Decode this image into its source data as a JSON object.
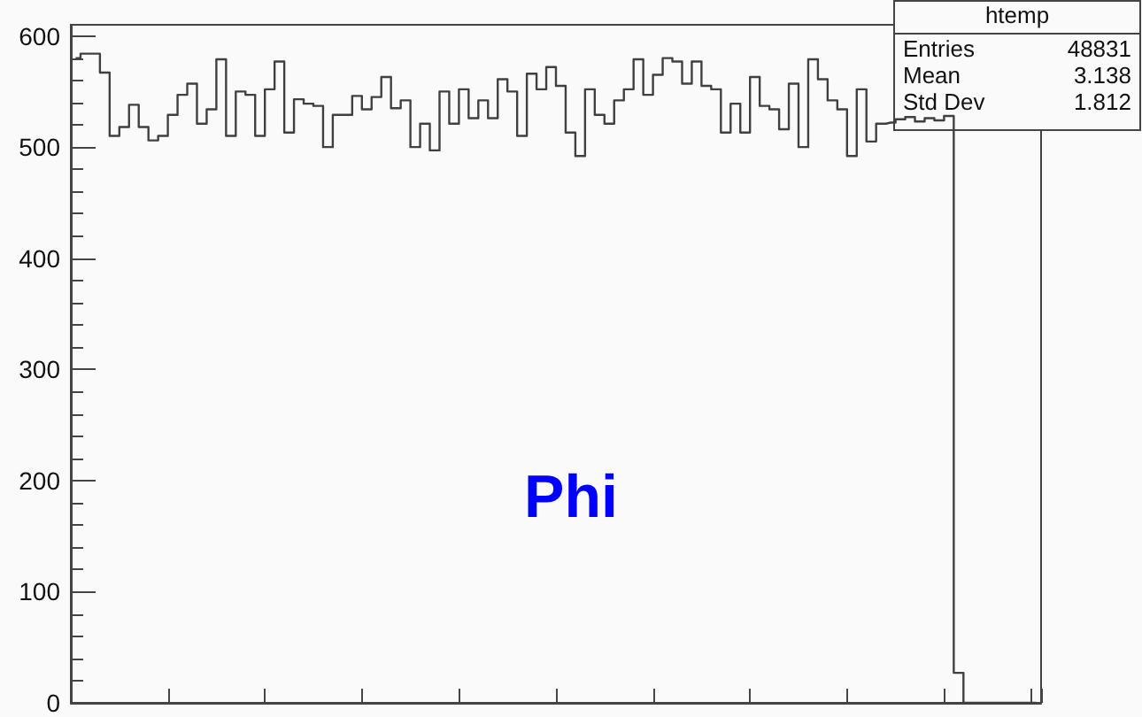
{
  "chart_data": {
    "type": "step",
    "title": "Phi",
    "legend_title": "htemp",
    "annotations": [
      "Entries",
      "48831",
      "Mean",
      "3.138",
      "Std Dev",
      "1.812"
    ],
    "categories": [
      null,
      null,
      null,
      null,
      null,
      null,
      null,
      null,
      null,
      null,
      null,
      null,
      null,
      null,
      null,
      null,
      null,
      null,
      null,
      null,
      null,
      null,
      null,
      null,
      null,
      null,
      null,
      null,
      null,
      null,
      null,
      null,
      null,
      null,
      null,
      null,
      null,
      null,
      null,
      null,
      null,
      null,
      null,
      null,
      null,
      null,
      null,
      null,
      null,
      null,
      null,
      null,
      null,
      null,
      null,
      null,
      null,
      null,
      null,
      null,
      null,
      null,
      null,
      null,
      null,
      null,
      null,
      null,
      null,
      null,
      null,
      null,
      null,
      null,
      null,
      null,
      null,
      null,
      null,
      null,
      null,
      null,
      null,
      null,
      null,
      null,
      null,
      null,
      null,
      null,
      null,
      null,
      null,
      null,
      null,
      null,
      null,
      null,
      null,
      null
    ],
    "series": [
      {
        "color": "#404040",
        "values": [
          580,
          584,
          584,
          567,
          510,
          518,
          538,
          518,
          506,
          510,
          529,
          547,
          557,
          521,
          534,
          579,
          510,
          550,
          547,
          510,
          552,
          577,
          513,
          543,
          539,
          537,
          500,
          529,
          529,
          546,
          534,
          545,
          563,
          535,
          542,
          500,
          521,
          497,
          550,
          521,
          552,
          526,
          542,
          526,
          561,
          550,
          510,
          566,
          552,
          572,
          555,
          513,
          492,
          552,
          529,
          521,
          542,
          552,
          579,
          547,
          565,
          580,
          577,
          557,
          577,
          555,
          552,
          513,
          539,
          513,
          563,
          537,
          534,
          516,
          557,
          500,
          579,
          561,
          542,
          534,
          492,
          552,
          505,
          521,
          522,
          525,
          527,
          523,
          526,
          524,
          528,
          27,
          0,
          0,
          0,
          0,
          0,
          0,
          0,
          0
        ]
      }
    ],
    "ylim": [
      0,
      610
    ],
    "yticks": [
      0,
      100,
      200,
      300,
      400,
      500,
      600
    ],
    "grid": false,
    "marker": "none",
    "line_style": "solid"
  }
}
